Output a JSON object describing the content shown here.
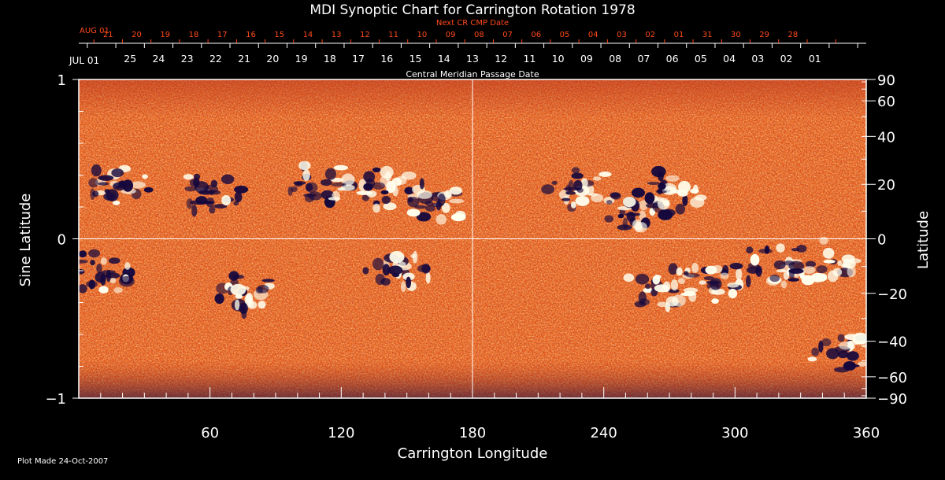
{
  "chart_data": {
    "type": "heatmap",
    "title": "MDI Synoptic Chart for Carrington Rotation 1978",
    "xlabel": "Carrington Longitude",
    "ylabel_left": "Sine Latitude",
    "ylabel_right": "Latitude",
    "xlim": [
      0,
      360
    ],
    "ylim": [
      -1,
      1
    ],
    "x_major_ticks": [
      60,
      120,
      180,
      240,
      300,
      360
    ],
    "y_left_ticks": [
      {
        "v": 1,
        "label": "1"
      },
      {
        "v": 0,
        "label": "0"
      },
      {
        "v": -1,
        "label": "−1"
      }
    ],
    "latitude_ticks": [
      {
        "deg": 90,
        "label": "90"
      },
      {
        "deg": 60,
        "label": "60"
      },
      {
        "deg": 40,
        "label": "40"
      },
      {
        "deg": 20,
        "label": "20"
      },
      {
        "deg": 0,
        "label": "0"
      },
      {
        "deg": -20,
        "label": "−20"
      },
      {
        "deg": -40,
        "label": "−40"
      },
      {
        "deg": -60,
        "label": "−60"
      },
      {
        "deg": -90,
        "label": "−90"
      }
    ],
    "cmp_axis": {
      "title": "Central Meridian Passage Date",
      "start_label": "JUL 01",
      "dates": [
        "25",
        "24",
        "23",
        "22",
        "21",
        "20",
        "19",
        "18",
        "17",
        "16",
        "15",
        "14",
        "13",
        "12",
        "11",
        "10",
        "09",
        "08",
        "07",
        "06",
        "05",
        "04",
        "03",
        "02",
        "01"
      ]
    },
    "next_cr_axis": {
      "title": "Next CR CMP Date",
      "start_label": "AUG 01",
      "dates": [
        "21",
        "20",
        "19",
        "18",
        "17",
        "16",
        "15",
        "14",
        "13",
        "12",
        "11",
        "10",
        "09",
        "08",
        "07",
        "06",
        "05",
        "04",
        "03",
        "02",
        "01",
        "31",
        "30",
        "29",
        "28"
      ]
    },
    "grid_lines": {
      "longitude": [
        180
      ],
      "sine_latitude": [
        0
      ]
    },
    "colors": {
      "background": "#000000",
      "axis": "#ffffff",
      "next_cr": "#ff4a1a",
      "field_base": "#e2561a",
      "positive": "#ffffee",
      "negative": "#15083d"
    },
    "active_regions": [
      {
        "lon": 20,
        "lat": 20,
        "polarity": "mixed"
      },
      {
        "lon": 60,
        "lat": 17,
        "polarity": "negative"
      },
      {
        "lon": 110,
        "lat": 20,
        "polarity": "mixed"
      },
      {
        "lon": 140,
        "lat": 18,
        "polarity": "mixed"
      },
      {
        "lon": 165,
        "lat": 14,
        "polarity": "mixed"
      },
      {
        "lon": 230,
        "lat": 18,
        "polarity": "mixed"
      },
      {
        "lon": 255,
        "lat": 10,
        "polarity": "mixed"
      },
      {
        "lon": 270,
        "lat": 18,
        "polarity": "mixed"
      },
      {
        "lon": 75,
        "lat": -20,
        "polarity": "mixed"
      },
      {
        "lon": 145,
        "lat": -12,
        "polarity": "mixed"
      },
      {
        "lon": 265,
        "lat": -18,
        "polarity": "mixed"
      },
      {
        "lon": 290,
        "lat": -16,
        "polarity": "mixed"
      },
      {
        "lon": 315,
        "lat": -10,
        "polarity": "mixed"
      },
      {
        "lon": 340,
        "lat": -8,
        "polarity": "mixed"
      },
      {
        "lon": 350,
        "lat": -45,
        "polarity": "mixed"
      },
      {
        "lon": 10,
        "lat": -12,
        "polarity": "negative"
      }
    ]
  },
  "footer": {
    "plot_made": "Plot Made 24-Oct-2007"
  }
}
